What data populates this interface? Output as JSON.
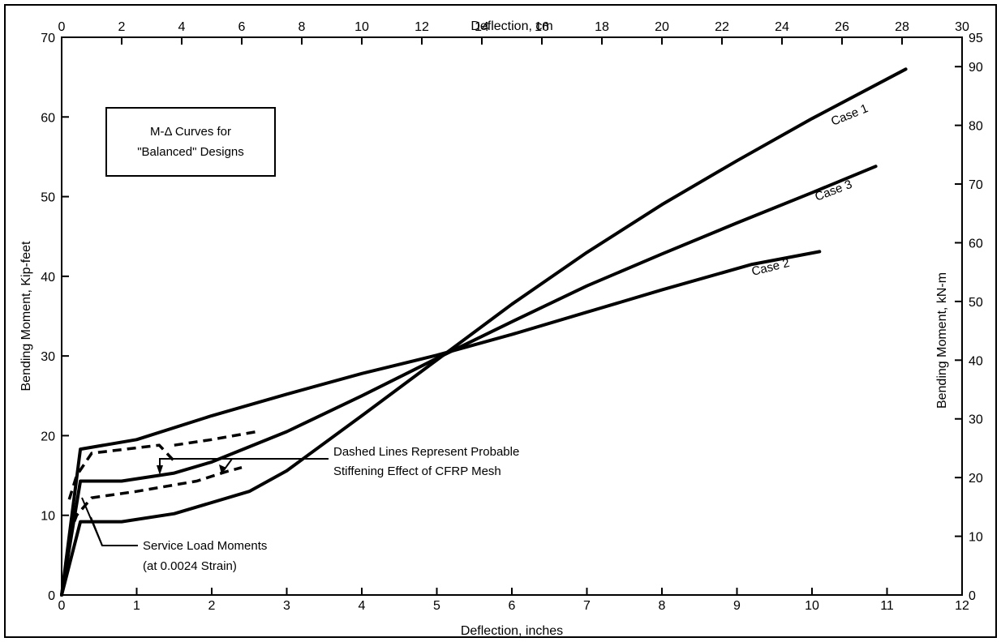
{
  "chart_data": {
    "type": "line",
    "title": "M-Δ Curves for \"Balanced\" Designs",
    "xlabel": "Deflection, inches",
    "ylabel": "Bending Moment, Kip-feet",
    "x2label": "Deflection, cm",
    "y2label": "Bending Moment, kN-m",
    "xlim": [
      0,
      12
    ],
    "ylim": [
      0,
      70
    ],
    "x2lim": [
      0,
      30
    ],
    "y2lim": [
      0,
      95
    ],
    "xticks": [
      "0",
      "1",
      "2",
      "3",
      "4",
      "5",
      "6",
      "7",
      "8",
      "9",
      "10",
      "11",
      "12"
    ],
    "yticks": [
      "0",
      "10",
      "20",
      "30",
      "40",
      "50",
      "60",
      "70"
    ],
    "x2ticks": [
      "0",
      "2",
      "4",
      "6",
      "8",
      "10",
      "12",
      "14",
      "16",
      "18",
      "20",
      "22",
      "24",
      "26",
      "28",
      "30"
    ],
    "y2ticks": [
      "0",
      "10",
      "20",
      "30",
      "40",
      "50",
      "60",
      "70",
      "80",
      "90",
      "95"
    ],
    "grid": false,
    "series": [
      {
        "name": "Case 1",
        "x": [
          0,
          0.25,
          0.8,
          1.5,
          2.5,
          3.0,
          4.0,
          5.0,
          6.0,
          7.0,
          8.0,
          9.0,
          10.0,
          11.25
        ],
        "y": [
          0,
          9.2,
          9.2,
          10.2,
          13.0,
          15.6,
          22.5,
          29.5,
          36.5,
          43.0,
          49.0,
          54.5,
          59.8,
          66.0
        ]
      },
      {
        "name": "Case 3",
        "x": [
          0,
          0.25,
          0.8,
          1.5,
          2.0,
          3.0,
          4.0,
          5.0,
          6.0,
          7.0,
          8.0,
          9.0,
          10.0,
          10.85
        ],
        "y": [
          0,
          14.3,
          14.3,
          15.3,
          16.7,
          20.5,
          25.0,
          29.7,
          34.3,
          38.8,
          42.8,
          46.7,
          50.5,
          53.8
        ]
      },
      {
        "name": "Case 2",
        "x": [
          0,
          0.25,
          1.0,
          2.0,
          3.0,
          4.0,
          5.0,
          6.0,
          7.0,
          8.0,
          9.2,
          10.1
        ],
        "y": [
          0,
          18.3,
          19.5,
          22.5,
          25.2,
          27.8,
          30.1,
          32.7,
          35.5,
          38.3,
          41.5,
          43.1
        ]
      },
      {
        "name": "",
        "style": "dashed",
        "x": [
          0.1,
          0.2,
          0.4,
          1.3,
          1.5
        ],
        "y": [
          12.0,
          15.0,
          17.8,
          18.8,
          16.8
        ]
      },
      {
        "name": "",
        "style": "dashed",
        "x": [
          1.5,
          2.0,
          2.6
        ],
        "y": [
          18.8,
          19.5,
          20.5
        ]
      },
      {
        "name": "",
        "style": "dashed",
        "x": [
          0.1,
          0.2,
          0.4,
          1.0,
          1.8,
          2.2,
          2.4
        ],
        "y": [
          7.5,
          10.0,
          12.2,
          13.0,
          14.3,
          15.5,
          16.0
        ]
      }
    ],
    "annotations": {
      "title_line1": "M-Δ Curves for",
      "title_line2": "\"Balanced\" Designs",
      "dashed_note_line1": "Dashed Lines Represent Probable",
      "dashed_note_line2": "Stiffening Effect of CFRP Mesh",
      "service_note_line1": "Service Load Moments",
      "service_note_line2": "(at 0.0024 Strain)"
    }
  }
}
